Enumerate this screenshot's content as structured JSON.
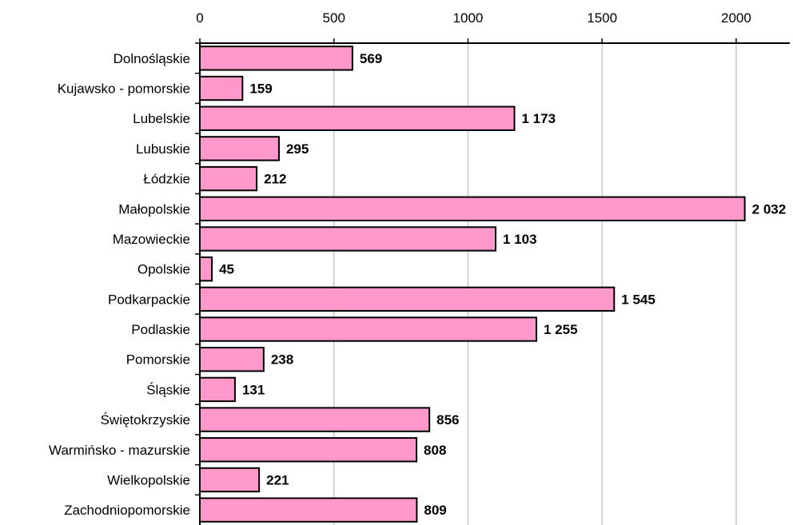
{
  "chart_data": {
    "type": "bar",
    "orientation": "horizontal",
    "categories": [
      "Dolnośląskie",
      "Kujawsko - pomorskie",
      "Lubelskie",
      "Lubuskie",
      "Łódzkie",
      "Małopolskie",
      "Mazowieckie",
      "Opolskie",
      "Podkarpackie",
      "Podlaskie",
      "Pomorskie",
      "Śląskie",
      "Świętokrzyskie",
      "Warmińsko - mazurskie",
      "Wielkopolskie",
      "Zachodniopomorskie"
    ],
    "values": [
      569,
      159,
      1173,
      295,
      212,
      2032,
      1103,
      45,
      1545,
      1255,
      238,
      131,
      856,
      808,
      221,
      809
    ],
    "data_labels": [
      "569",
      "159",
      "1 173",
      "295",
      "212",
      "2 032",
      "1 103",
      "45",
      "1 545",
      "1 255",
      "238",
      "131",
      "856",
      "808",
      "221",
      "809"
    ],
    "x_ticks": [
      "0",
      "500",
      "1000",
      "1500",
      "2000"
    ],
    "x_tick_values": [
      0,
      500,
      1000,
      1500,
      2000
    ],
    "xlim": [
      0,
      2200
    ],
    "x_axis_position": "top",
    "grid": true,
    "legend": "none",
    "bar_color": "#ff99cc",
    "bar_edge_color": "#000000",
    "grid_color": "#c0c0c0",
    "title": "",
    "xlabel": "",
    "ylabel": ""
  }
}
